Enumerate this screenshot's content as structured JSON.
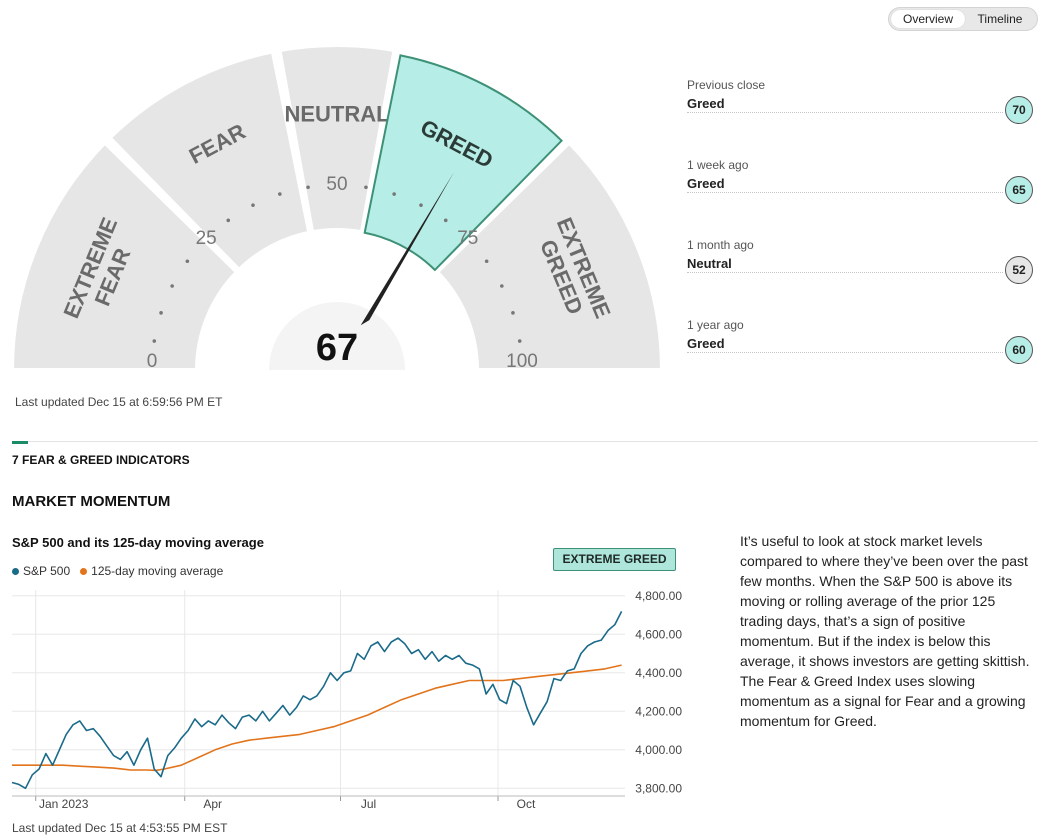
{
  "view_toggle": {
    "options": [
      "Overview",
      "Timeline"
    ],
    "active": "Overview"
  },
  "gauge": {
    "score": 67,
    "rating": "Greed",
    "segments": [
      "EXTREME FEAR",
      "FEAR",
      "NEUTRAL",
      "GREED",
      "EXTREME GREED"
    ],
    "active_segment": "GREED",
    "ticks": [
      "0",
      "25",
      "50",
      "75",
      "100"
    ],
    "updated": "Last updated Dec 15 at 6:59:56 PM ET",
    "colors": {
      "segment": "#e6e6e6",
      "active_fill": "#b6ede6",
      "active_border": "#3d9176",
      "needle": "#222222"
    }
  },
  "history": [
    {
      "label": "Previous close",
      "rating": "Greed",
      "score": "70",
      "color": "#b6ede6"
    },
    {
      "label": "1 week ago",
      "rating": "Greed",
      "score": "65",
      "color": "#b6ede6"
    },
    {
      "label": "1 month ago",
      "rating": "Neutral",
      "score": "52",
      "color": "#e6e6e6"
    },
    {
      "label": "1 year ago",
      "rating": "Greed",
      "score": "60",
      "color": "#b6ede6"
    }
  ],
  "indicators_title": "7 FEAR & GREED INDICATORS",
  "indicator": {
    "name": "MARKET MOMENTUM",
    "chart_title": "S&P 500 and its 125-day moving average",
    "badge": "EXTREME GREED",
    "legend": [
      {
        "label": "S&P 500",
        "color": "#1a6a8a"
      },
      {
        "label": "125-day moving average",
        "color": "#e2741c"
      }
    ],
    "updated": "Last updated Dec 15 at 4:53:55 PM EST",
    "description": "It’s useful to look at stock market levels compared to where they’ve been over the past few months. When the S&P 500 is above its moving or rolling average of the prior 125 trading days, that’s a sign of positive momentum. But if the index is below this average, it shows investors are getting skittish. The Fear & Greed Index uses slowing momentum as a signal for Fear and a growing momentum for Greed."
  },
  "chart_data": {
    "type": "line",
    "x_ticks": [
      "Jan 2023",
      "Apr",
      "Jul",
      "Oct"
    ],
    "y_ticks": [
      "3,800.00",
      "4,000.00",
      "4,200.00",
      "4,400.00",
      "4,600.00",
      "4,800.00"
    ],
    "ylim": [
      3760,
      4830
    ],
    "xlim": [
      0,
      362
    ],
    "grid": true,
    "series": [
      {
        "name": "S&P 500",
        "color": "#1a6a8a",
        "x": [
          0,
          4,
          8,
          12,
          16,
          20,
          24,
          28,
          32,
          36,
          40,
          44,
          48,
          52,
          56,
          60,
          64,
          68,
          72,
          76,
          80,
          84,
          88,
          92,
          96,
          100,
          104,
          108,
          112,
          116,
          120,
          124,
          128,
          132,
          136,
          140,
          144,
          148,
          152,
          156,
          160,
          164,
          168,
          172,
          176,
          180,
          184,
          188,
          192,
          196,
          200,
          204,
          208,
          212,
          216,
          220,
          224,
          228,
          232,
          236,
          240,
          244,
          248,
          252,
          256,
          260,
          264,
          268,
          272,
          276,
          280,
          284,
          288,
          292,
          296,
          300,
          304,
          308,
          312,
          316,
          320,
          324,
          328,
          332,
          336,
          340,
          344,
          348,
          352,
          356,
          360
        ],
        "y": [
          3830,
          3820,
          3800,
          3870,
          3900,
          3980,
          3920,
          4000,
          4080,
          4130,
          4150,
          4100,
          4110,
          4070,
          4020,
          3970,
          3950,
          3990,
          3920,
          4000,
          4060,
          3900,
          3860,
          3970,
          4010,
          4060,
          4100,
          4160,
          4120,
          4150,
          4130,
          4180,
          4140,
          4110,
          4170,
          4180,
          4150,
          4200,
          4150,
          4190,
          4230,
          4180,
          4220,
          4280,
          4260,
          4280,
          4330,
          4400,
          4360,
          4400,
          4410,
          4500,
          4470,
          4540,
          4560,
          4510,
          4560,
          4580,
          4550,
          4500,
          4520,
          4470,
          4510,
          4460,
          4490,
          4470,
          4490,
          4450,
          4440,
          4420,
          4290,
          4340,
          4260,
          4240,
          4360,
          4330,
          4220,
          4130,
          4190,
          4250,
          4370,
          4360,
          4410,
          4420,
          4500,
          4540,
          4560,
          4570,
          4620,
          4650,
          4719
        ]
      },
      {
        "name": "125-day moving average",
        "color": "#e2741c",
        "x": [
          0,
          10,
          20,
          30,
          40,
          50,
          60,
          70,
          80,
          85,
          90,
          100,
          110,
          120,
          130,
          140,
          150,
          160,
          170,
          180,
          190,
          200,
          210,
          220,
          230,
          240,
          250,
          260,
          270,
          280,
          290,
          300,
          310,
          320,
          330,
          340,
          350,
          360
        ],
        "y": [
          3920,
          3920,
          3920,
          3920,
          3915,
          3910,
          3905,
          3895,
          3895,
          3893,
          3900,
          3920,
          3960,
          4000,
          4030,
          4050,
          4060,
          4070,
          4080,
          4100,
          4120,
          4150,
          4180,
          4220,
          4260,
          4290,
          4320,
          4340,
          4360,
          4360,
          4360,
          4370,
          4380,
          4390,
          4400,
          4410,
          4420,
          4440
        ]
      }
    ]
  }
}
